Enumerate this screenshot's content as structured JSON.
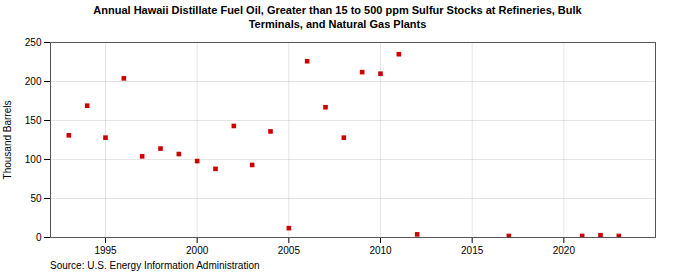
{
  "chart_data": {
    "type": "scatter",
    "title": "Annual Hawaii Distillate Fuel Oil, Greater than 15 to 500 ppm Sulfur Stocks at Refineries, Bulk\nTerminals, and Natural Gas Plants",
    "ylabel": "Thousand Barrels",
    "source": "Source: U.S. Energy Information Administration",
    "x": [
      1993,
      1994,
      1995,
      1996,
      1997,
      1998,
      1999,
      2000,
      2001,
      2002,
      2003,
      2004,
      2005,
      2006,
      2007,
      2008,
      2009,
      2010,
      2011,
      2012,
      2017,
      2021,
      2022,
      2023
    ],
    "values": [
      131,
      169,
      128,
      204,
      104,
      114,
      107,
      98,
      88,
      143,
      93,
      136,
      12,
      226,
      167,
      128,
      212,
      210,
      235,
      4,
      2,
      2,
      3,
      2
    ],
    "color": "#cc0000",
    "marker": "square",
    "xlim": [
      1992,
      2025
    ],
    "ylim": [
      0,
      250
    ],
    "xticks": [
      1995,
      2000,
      2005,
      2010,
      2015,
      2020
    ],
    "yticks": [
      0,
      50,
      100,
      150,
      200,
      250
    ],
    "grid": true
  }
}
